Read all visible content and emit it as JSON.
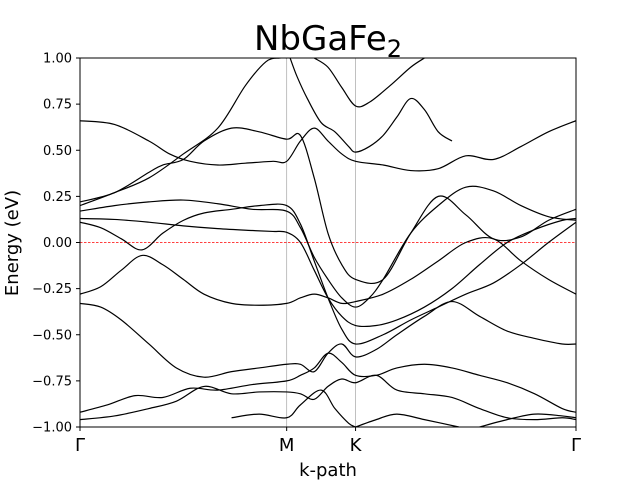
{
  "chart_data": {
    "type": "line",
    "title": "NbGaFe",
    "title_subscript": "2",
    "xlabel": "k-path",
    "ylabel": "Energy (eV)",
    "ylim": [
      -1.0,
      1.0
    ],
    "xlim": [
      0,
      7.2
    ],
    "grid": false,
    "legend": "none",
    "yticks": [
      -1.0,
      -0.75,
      -0.5,
      -0.25,
      0.0,
      0.25,
      0.5,
      0.75,
      1.0
    ],
    "ytick_labels": [
      "−1.00",
      "−0.75",
      "−0.50",
      "−0.25",
      "0.00",
      "0.25",
      "0.50",
      "0.75",
      "1.00"
    ],
    "kpoints": [
      {
        "label": "Γ",
        "x": 0
      },
      {
        "label": "M",
        "x": 3.0
      },
      {
        "label": "K",
        "x": 4.0
      },
      {
        "label": "Γ",
        "x": 7.2
      }
    ],
    "fermi_level": 0.0,
    "colors": {
      "bands": "#000000",
      "fermi": "#ff0000",
      "kline": "#b0b0b0"
    },
    "series": [
      {
        "x": [
          0,
          0.5,
          1.0,
          1.5,
          2.0,
          2.5,
          2.8,
          3.0,
          3.2,
          3.4,
          3.6,
          3.8,
          4.0,
          4.3,
          4.6,
          5.0,
          5.4,
          5.8,
          6.2,
          6.6,
          7.0,
          7.2
        ],
        "y": [
          0.13,
          0.125,
          0.11,
          0.09,
          0.075,
          0.065,
          0.06,
          0.055,
          0.0,
          -0.15,
          -0.3,
          -0.4,
          -0.45,
          -0.45,
          -0.42,
          -0.35,
          -0.25,
          -0.12,
          0.0,
          0.07,
          0.12,
          0.13
        ]
      },
      {
        "x": [
          0,
          0.3,
          0.6,
          0.9,
          1.2,
          1.5,
          1.8,
          2.2,
          2.6,
          3.0,
          3.2,
          3.4,
          3.6,
          3.8,
          4.0,
          4.4,
          4.8,
          5.2,
          5.6,
          6.0,
          6.4,
          6.8,
          7.2
        ],
        "y": [
          0.11,
          0.08,
          0.02,
          -0.04,
          0.05,
          0.12,
          0.16,
          0.18,
          0.2,
          0.2,
          0.1,
          -0.1,
          -0.3,
          -0.47,
          -0.55,
          -0.5,
          -0.42,
          -0.35,
          -0.28,
          -0.22,
          -0.12,
          0.0,
          0.11
        ]
      },
      {
        "x": [
          0,
          0.5,
          1.0,
          1.5,
          2.0,
          2.5,
          3.0,
          3.2,
          3.4,
          3.6,
          3.8,
          4.0,
          4.2,
          4.4,
          4.8,
          5.2,
          5.6,
          6.0,
          6.4,
          6.8,
          7.2
        ],
        "y": [
          0.17,
          0.2,
          0.22,
          0.23,
          0.21,
          0.18,
          0.17,
          0.08,
          -0.08,
          -0.2,
          -0.3,
          -0.35,
          -0.3,
          -0.2,
          0.05,
          0.2,
          0.3,
          0.28,
          0.2,
          0.14,
          0.12
        ]
      },
      {
        "x": [
          0,
          0.5,
          1.0,
          1.2,
          1.5,
          1.8,
          2.2,
          2.6,
          3.0,
          3.2,
          3.4,
          3.6,
          3.8,
          4.0,
          4.4,
          4.8,
          5.2,
          5.6,
          6.0,
          6.4,
          6.8,
          7.2
        ],
        "y": [
          0.22,
          0.27,
          0.38,
          0.42,
          0.45,
          0.55,
          0.62,
          0.6,
          0.56,
          0.58,
          0.35,
          0.05,
          -0.12,
          -0.2,
          -0.2,
          0.05,
          0.25,
          0.15,
          0.02,
          0.03,
          0.12,
          0.18
        ]
      },
      {
        "x": [
          0,
          0.5,
          1.0,
          1.3,
          1.6,
          2.0,
          2.4,
          2.8,
          3.0,
          3.2,
          3.4,
          3.6,
          3.8,
          4.0,
          4.4,
          4.8,
          5.2,
          5.6,
          6.0,
          6.4,
          6.8,
          7.2
        ],
        "y": [
          0.66,
          0.64,
          0.55,
          0.48,
          0.44,
          0.42,
          0.43,
          0.44,
          0.44,
          0.55,
          0.62,
          0.55,
          0.48,
          0.44,
          0.42,
          0.39,
          0.4,
          0.47,
          0.45,
          0.52,
          0.6,
          0.66
        ]
      },
      {
        "x": [
          0,
          0.5,
          1.0,
          1.5,
          2.0,
          2.4,
          2.7,
          2.9,
          3.0
        ],
        "y": [
          0.2,
          0.27,
          0.35,
          0.48,
          0.62,
          0.85,
          0.98,
          1.0,
          1.0
        ]
      },
      {
        "x": [
          3.05,
          3.15,
          3.3,
          3.5,
          3.7,
          3.9,
          4.0,
          4.2,
          4.4,
          4.6,
          4.8,
          5.0,
          5.2,
          5.4
        ],
        "y": [
          1.0,
          0.9,
          0.78,
          0.65,
          0.6,
          0.52,
          0.49,
          0.52,
          0.58,
          0.68,
          0.78,
          0.72,
          0.6,
          0.55
        ]
      },
      {
        "x": [
          3.4,
          3.6,
          3.8,
          4.0,
          4.2,
          4.5,
          4.8,
          5.0
        ],
        "y": [
          1.0,
          0.95,
          0.84,
          0.74,
          0.76,
          0.85,
          0.95,
          1.0
        ]
      },
      {
        "x": [
          0,
          0.3,
          0.6,
          0.9,
          1.2,
          1.5,
          1.8,
          2.2,
          2.6,
          3.0,
          3.2,
          3.4,
          3.6,
          3.8,
          4.0,
          4.4,
          4.8,
          5.2,
          5.6,
          6.0,
          6.4,
          6.8,
          7.2
        ],
        "y": [
          -0.28,
          -0.24,
          -0.15,
          -0.07,
          -0.12,
          -0.2,
          -0.28,
          -0.33,
          -0.34,
          -0.33,
          -0.3,
          -0.28,
          -0.3,
          -0.33,
          -0.32,
          -0.28,
          -0.2,
          -0.1,
          0.0,
          0.02,
          -0.1,
          -0.2,
          -0.28
        ]
      },
      {
        "x": [
          0,
          0.3,
          0.6,
          1.0,
          1.4,
          1.8,
          2.2,
          2.6,
          3.0,
          3.2,
          3.4,
          3.6,
          3.8,
          4.0,
          4.3,
          4.6,
          5.0,
          5.4,
          5.8,
          6.2,
          6.6,
          7.0,
          7.2
        ],
        "y": [
          -0.33,
          -0.35,
          -0.42,
          -0.55,
          -0.68,
          -0.73,
          -0.7,
          -0.68,
          -0.66,
          -0.66,
          -0.7,
          -0.6,
          -0.55,
          -0.62,
          -0.58,
          -0.5,
          -0.4,
          -0.32,
          -0.4,
          -0.48,
          -0.52,
          -0.55,
          -0.55
        ]
      },
      {
        "x": [
          0,
          0.4,
          0.8,
          1.2,
          1.6,
          2.0,
          2.5,
          3.0,
          3.2,
          3.4,
          3.6,
          3.8,
          4.0,
          4.3,
          4.6,
          5.0,
          5.4,
          5.8,
          6.2,
          6.6,
          7.0,
          7.2
        ],
        "y": [
          -0.92,
          -0.88,
          -0.83,
          -0.84,
          -0.79,
          -0.8,
          -0.77,
          -0.75,
          -0.72,
          -0.68,
          -0.6,
          -0.65,
          -0.72,
          -0.72,
          -0.68,
          -0.66,
          -0.68,
          -0.72,
          -0.76,
          -0.82,
          -0.9,
          -0.92
        ]
      },
      {
        "x": [
          0,
          0.5,
          1.0,
          1.4,
          1.8,
          2.2,
          2.6,
          3.0,
          3.2,
          3.4,
          3.6,
          3.8,
          4.0,
          4.3,
          4.6,
          5.0,
          5.4,
          5.8,
          6.2,
          6.6,
          7.0,
          7.2
        ],
        "y": [
          -0.96,
          -0.94,
          -0.9,
          -0.86,
          -0.78,
          -0.82,
          -0.81,
          -0.81,
          -0.82,
          -0.85,
          -0.78,
          -0.74,
          -0.76,
          -0.72,
          -0.8,
          -0.82,
          -0.84,
          -0.9,
          -0.95,
          -0.96,
          -0.95,
          -0.96
        ]
      },
      {
        "x": [
          2.2,
          2.6,
          3.0,
          3.2,
          3.5,
          3.7,
          3.9,
          4.0
        ],
        "y": [
          -0.95,
          -0.93,
          -0.95,
          -0.88,
          -0.8,
          -0.9,
          -0.98,
          -1.0
        ]
      },
      {
        "x": [
          4.0,
          4.3,
          4.6,
          5.0,
          5.5
        ],
        "y": [
          -1.0,
          -0.96,
          -0.93,
          -0.96,
          -1.0
        ]
      },
      {
        "x": [
          5.8,
          6.2,
          6.6,
          7.0,
          7.2
        ],
        "y": [
          -1.0,
          -0.96,
          -0.93,
          -0.94,
          -0.95
        ]
      }
    ]
  }
}
